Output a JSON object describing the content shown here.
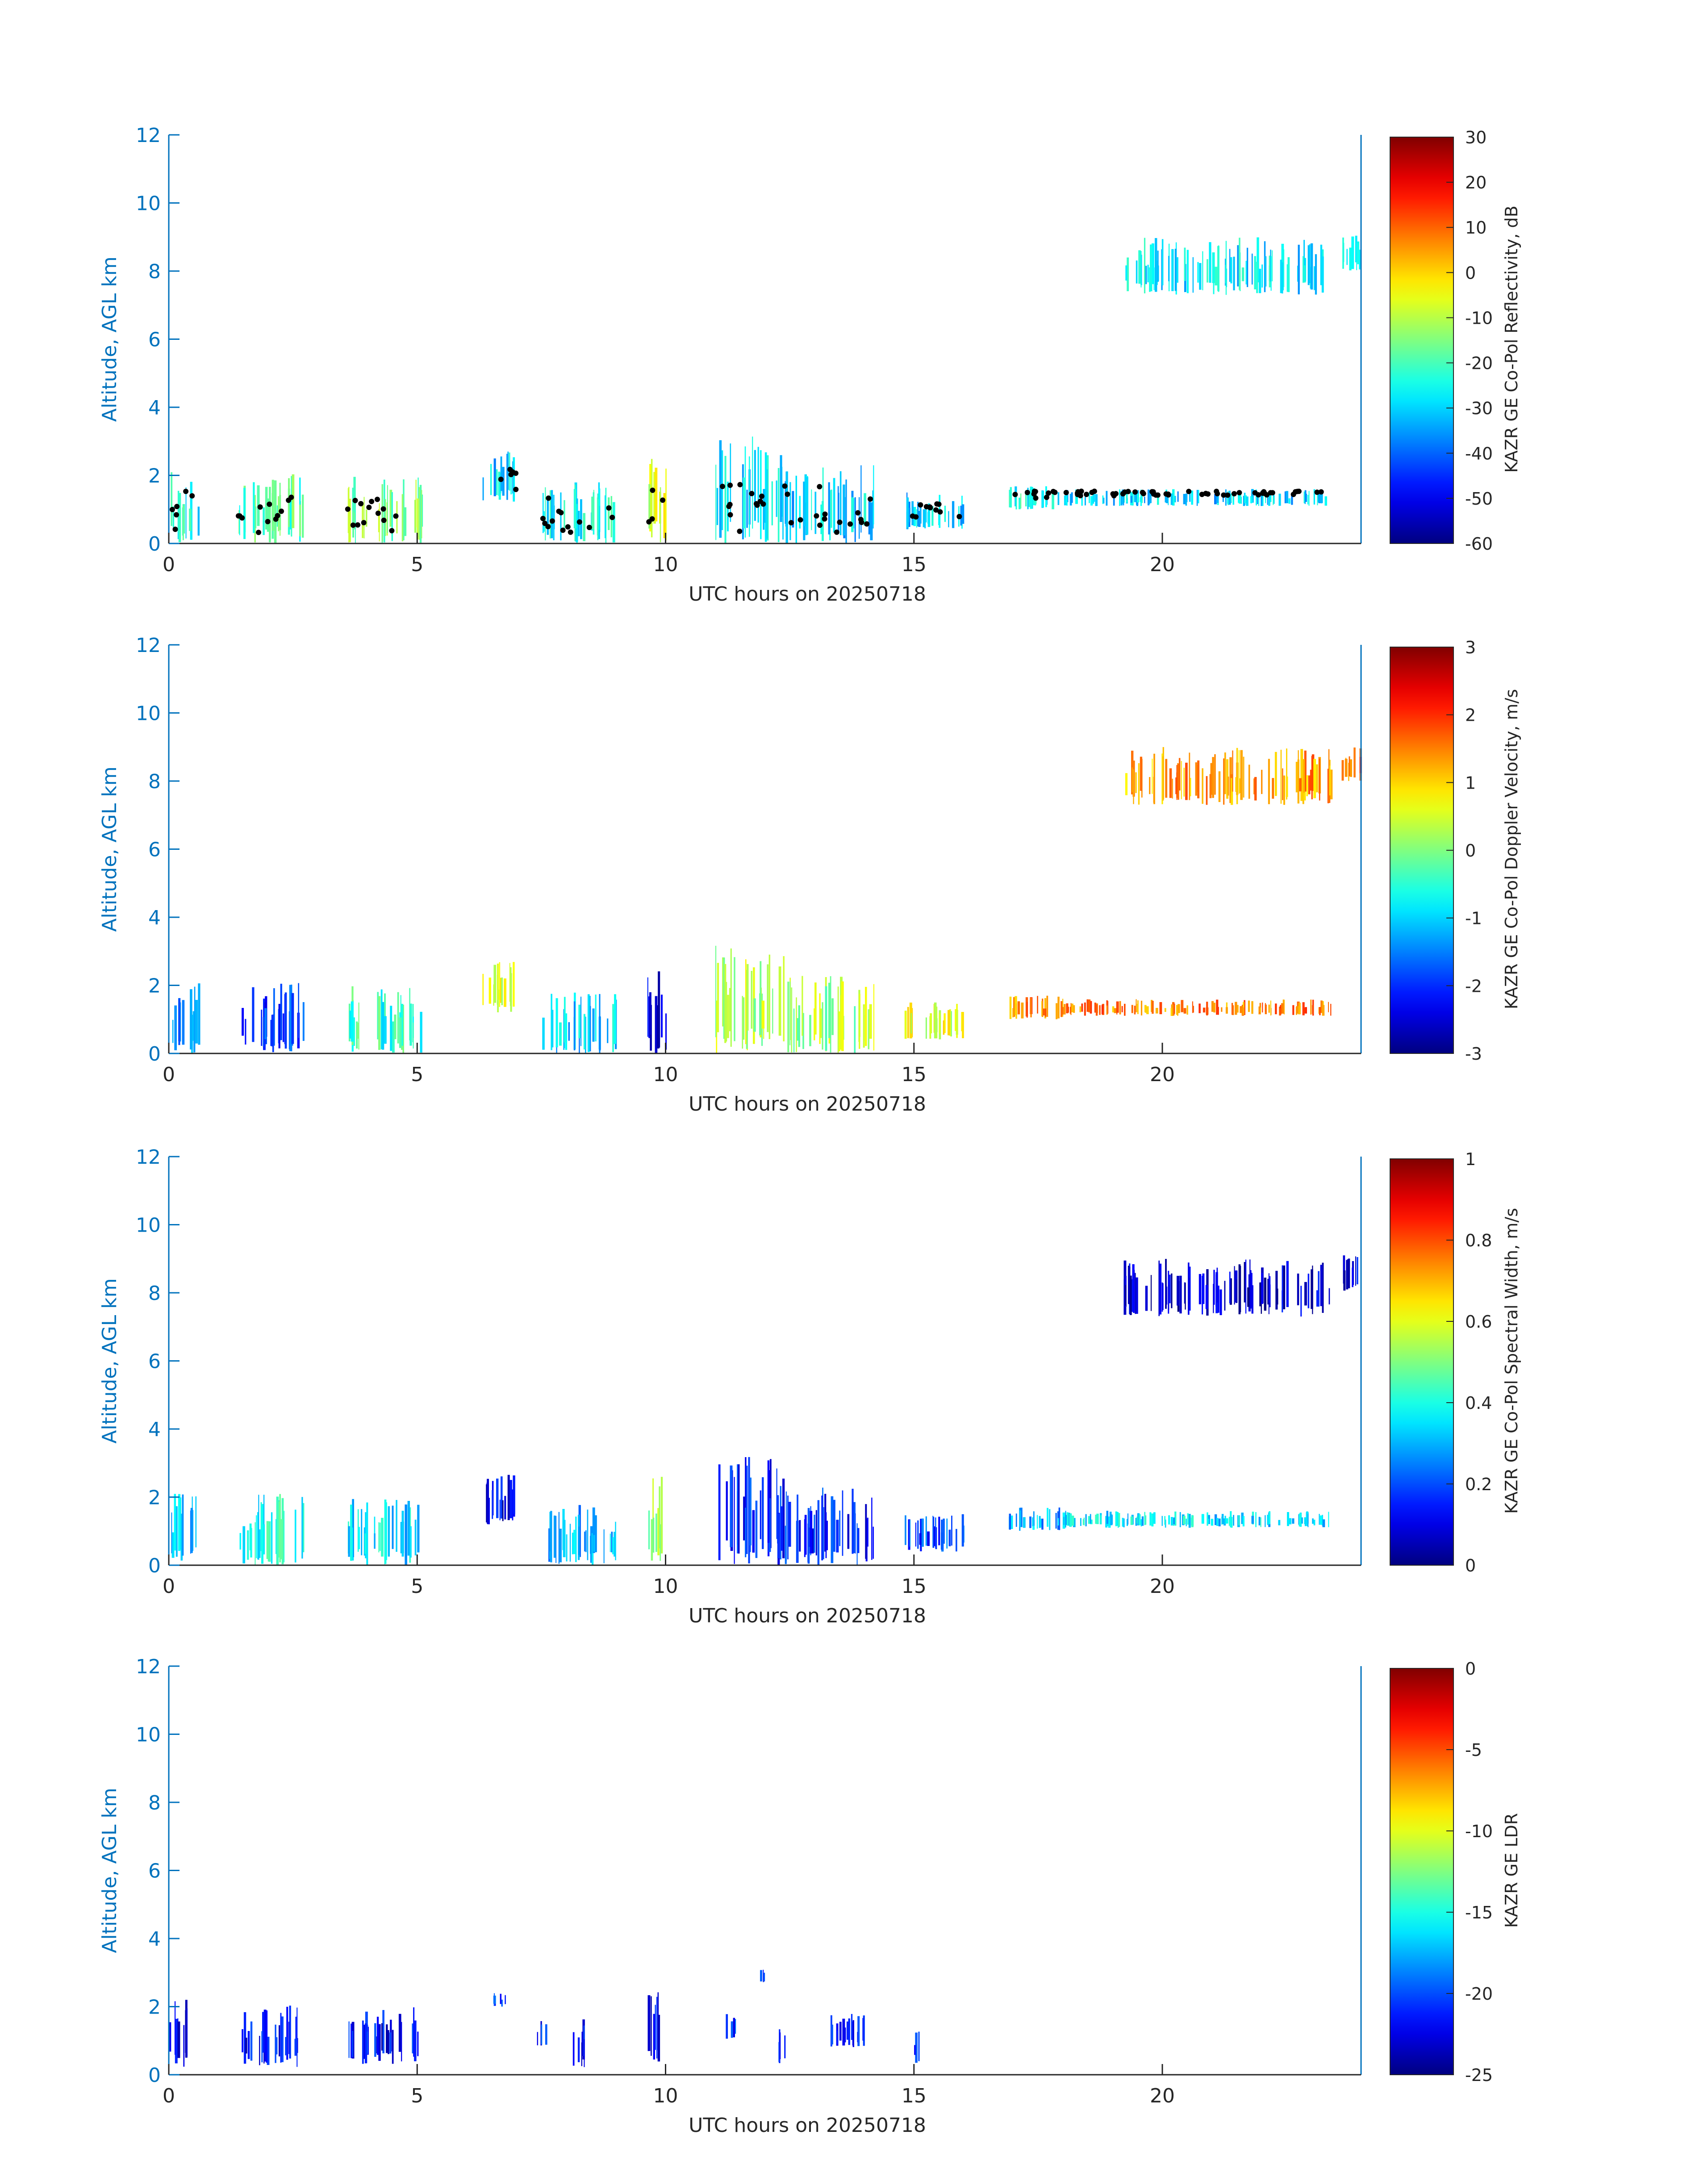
{
  "figure": {
    "axis_color": "#0072BD",
    "text_color": "#262626"
  },
  "chart_data": [
    {
      "type": "heatmap",
      "title": "",
      "xlabel": "UTC hours on 20250718",
      "ylabel": "Altitude, AGL km",
      "xlim": [
        0,
        24
      ],
      "ylim": [
        0,
        12
      ],
      "x_ticks": [
        0,
        5,
        10,
        15,
        20
      ],
      "y_ticks": [
        0,
        2,
        4,
        6,
        8,
        10,
        12
      ],
      "grid": false,
      "colormap": "jet",
      "colorbar": {
        "label": "KAZR GE Co-Pol Reflectivity, dB",
        "min": -60,
        "max": 30,
        "ticks": [
          -60,
          -50,
          -40,
          -30,
          -20,
          -10,
          0,
          10,
          20,
          30
        ]
      },
      "overlay": {
        "type": "scatter",
        "color": "#000000",
        "description": "black dots near cloud base"
      },
      "echoes": [
        {
          "x0": 0.0,
          "x1": 0.6,
          "y0": 0.0,
          "y1": 2.1,
          "value": -25
        },
        {
          "x0": 1.4,
          "x1": 2.7,
          "y0": 0.0,
          "y1": 2.1,
          "value": -20
        },
        {
          "x0": 3.6,
          "x1": 5.1,
          "y0": 0.0,
          "y1": 2.0,
          "value": -15
        },
        {
          "x0": 6.3,
          "x1": 7.0,
          "y0": 1.2,
          "y1": 2.7,
          "value": -30
        },
        {
          "x0": 7.5,
          "x1": 9.0,
          "y0": 0.0,
          "y1": 1.8,
          "value": -25
        },
        {
          "x0": 9.6,
          "x1": 10.0,
          "y0": 0.0,
          "y1": 2.6,
          "value": -5
        },
        {
          "x0": 11.0,
          "x1": 12.4,
          "y0": 0.0,
          "y1": 3.2,
          "value": -30
        },
        {
          "x0": 12.4,
          "x1": 14.2,
          "y0": 0.0,
          "y1": 2.3,
          "value": -30
        },
        {
          "x0": 14.8,
          "x1": 16.0,
          "y0": 0.4,
          "y1": 1.5,
          "value": -30
        },
        {
          "x0": 16.9,
          "x1": 18.0,
          "y0": 1.0,
          "y1": 1.7,
          "value": -25
        },
        {
          "x0": 18.0,
          "x1": 23.4,
          "y0": 1.1,
          "y1": 1.6,
          "value": -30
        },
        {
          "x0": 19.2,
          "x1": 23.4,
          "y0": 7.3,
          "y1": 9.0,
          "value": -28
        },
        {
          "x0": 23.6,
          "x1": 24.0,
          "y0": 8.0,
          "y1": 9.1,
          "value": -28
        }
      ]
    },
    {
      "type": "heatmap",
      "title": "",
      "xlabel": "UTC hours on 20250718",
      "ylabel": "Altitude, AGL km",
      "xlim": [
        0,
        24
      ],
      "ylim": [
        0,
        12
      ],
      "x_ticks": [
        0,
        5,
        10,
        15,
        20
      ],
      "y_ticks": [
        0,
        2,
        4,
        6,
        8,
        10,
        12
      ],
      "grid": false,
      "colormap": "jet",
      "colorbar": {
        "label": "KAZR GE Co-Pol Doppler Velocity, m/s",
        "min": -3,
        "max": 3,
        "ticks": [
          -3,
          -2,
          -1,
          0,
          1,
          2,
          3
        ]
      },
      "echoes": [
        {
          "x0": 0.0,
          "x1": 0.6,
          "y0": 0.0,
          "y1": 2.1,
          "value": -1.5
        },
        {
          "x0": 1.4,
          "x1": 2.7,
          "y0": 0.0,
          "y1": 2.1,
          "value": -2.0
        },
        {
          "x0": 3.6,
          "x1": 5.1,
          "y0": 0.0,
          "y1": 2.0,
          "value": -0.5
        },
        {
          "x0": 6.3,
          "x1": 7.0,
          "y0": 1.2,
          "y1": 2.7,
          "value": 0.5
        },
        {
          "x0": 7.5,
          "x1": 9.0,
          "y0": 0.0,
          "y1": 1.8,
          "value": -1.0
        },
        {
          "x0": 9.6,
          "x1": 10.0,
          "y0": 0.0,
          "y1": 2.6,
          "value": -2.5
        },
        {
          "x0": 11.0,
          "x1": 12.4,
          "y0": 0.0,
          "y1": 3.2,
          "value": 0.3
        },
        {
          "x0": 12.4,
          "x1": 14.2,
          "y0": 0.0,
          "y1": 2.3,
          "value": 0.2
        },
        {
          "x0": 14.8,
          "x1": 16.0,
          "y0": 0.4,
          "y1": 1.5,
          "value": 0.5
        },
        {
          "x0": 16.9,
          "x1": 18.0,
          "y0": 1.0,
          "y1": 1.7,
          "value": 1.5
        },
        {
          "x0": 18.0,
          "x1": 23.4,
          "y0": 1.1,
          "y1": 1.6,
          "value": 1.5
        },
        {
          "x0": 19.2,
          "x1": 23.4,
          "y0": 7.3,
          "y1": 9.0,
          "value": 1.3
        },
        {
          "x0": 23.6,
          "x1": 24.0,
          "y0": 8.0,
          "y1": 9.1,
          "value": 1.6
        }
      ]
    },
    {
      "type": "heatmap",
      "title": "",
      "xlabel": "UTC hours on 20250718",
      "ylabel": "Altitude, AGL km",
      "xlim": [
        0,
        24
      ],
      "ylim": [
        0,
        12
      ],
      "x_ticks": [
        0,
        5,
        10,
        15,
        20
      ],
      "y_ticks": [
        0,
        2,
        4,
        6,
        8,
        10,
        12
      ],
      "grid": false,
      "colormap": "jet",
      "colorbar": {
        "label": "KAZR GE Co-Pol Spectral Width, m/s",
        "min": 0,
        "max": 1,
        "ticks": [
          0,
          0.2,
          0.4,
          0.6,
          0.8,
          1
        ]
      },
      "echoes": [
        {
          "x0": 0.0,
          "x1": 0.6,
          "y0": 0.0,
          "y1": 2.1,
          "value": 0.3
        },
        {
          "x0": 1.4,
          "x1": 2.7,
          "y0": 0.0,
          "y1": 2.1,
          "value": 0.4
        },
        {
          "x0": 3.6,
          "x1": 5.1,
          "y0": 0.0,
          "y1": 2.0,
          "value": 0.35
        },
        {
          "x0": 6.3,
          "x1": 7.0,
          "y0": 1.2,
          "y1": 2.7,
          "value": 0.1
        },
        {
          "x0": 7.5,
          "x1": 9.0,
          "y0": 0.0,
          "y1": 1.8,
          "value": 0.3
        },
        {
          "x0": 9.6,
          "x1": 10.0,
          "y0": 0.0,
          "y1": 2.6,
          "value": 0.5
        },
        {
          "x0": 11.0,
          "x1": 12.4,
          "y0": 0.0,
          "y1": 3.2,
          "value": 0.15
        },
        {
          "x0": 12.4,
          "x1": 14.2,
          "y0": 0.0,
          "y1": 2.3,
          "value": 0.15
        },
        {
          "x0": 14.8,
          "x1": 16.0,
          "y0": 0.4,
          "y1": 1.5,
          "value": 0.2
        },
        {
          "x0": 16.9,
          "x1": 18.0,
          "y0": 1.0,
          "y1": 1.7,
          "value": 0.3
        },
        {
          "x0": 18.0,
          "x1": 23.4,
          "y0": 1.1,
          "y1": 1.6,
          "value": 0.35
        },
        {
          "x0": 19.2,
          "x1": 23.4,
          "y0": 7.3,
          "y1": 9.0,
          "value": 0.08
        },
        {
          "x0": 23.6,
          "x1": 24.0,
          "y0": 8.0,
          "y1": 9.1,
          "value": 0.1
        }
      ]
    },
    {
      "type": "heatmap",
      "title": "",
      "xlabel": "UTC hours on 20250718",
      "ylabel": "Altitude, AGL km",
      "xlim": [
        0,
        24
      ],
      "ylim": [
        0,
        12
      ],
      "x_ticks": [
        0,
        5,
        10,
        15,
        20
      ],
      "y_ticks": [
        0,
        2,
        4,
        6,
        8,
        10,
        12
      ],
      "grid": false,
      "colormap": "jet",
      "colorbar": {
        "label": "KAZR GE LDR",
        "min": -25,
        "max": 0,
        "ticks": [
          -25,
          -20,
          -15,
          -10,
          -5,
          0
        ]
      },
      "echoes": [
        {
          "x0": 0.0,
          "x1": 0.4,
          "y0": 0.2,
          "y1": 2.2,
          "value": -22
        },
        {
          "x0": 1.4,
          "x1": 2.6,
          "y0": 0.2,
          "y1": 2.1,
          "value": -22
        },
        {
          "x0": 3.6,
          "x1": 5.0,
          "y0": 0.3,
          "y1": 2.0,
          "value": -22
        },
        {
          "x0": 6.5,
          "x1": 6.8,
          "y0": 2.0,
          "y1": 2.4,
          "value": -21
        },
        {
          "x0": 7.4,
          "x1": 7.6,
          "y0": 0.8,
          "y1": 1.6,
          "value": -21
        },
        {
          "x0": 8.1,
          "x1": 8.4,
          "y0": 0.2,
          "y1": 1.7,
          "value": -22
        },
        {
          "x0": 9.6,
          "x1": 9.9,
          "y0": 0.2,
          "y1": 2.5,
          "value": -22
        },
        {
          "x0": 11.2,
          "x1": 11.4,
          "y0": 1.0,
          "y1": 2.0,
          "value": -21
        },
        {
          "x0": 11.9,
          "x1": 12.0,
          "y0": 2.7,
          "y1": 3.1,
          "value": -21
        },
        {
          "x0": 12.2,
          "x1": 12.4,
          "y0": 0.2,
          "y1": 1.8,
          "value": -22
        },
        {
          "x0": 13.3,
          "x1": 14.0,
          "y0": 0.8,
          "y1": 1.8,
          "value": -21
        },
        {
          "x0": 15.0,
          "x1": 15.1,
          "y0": 0.3,
          "y1": 1.5,
          "value": -21
        }
      ]
    }
  ]
}
